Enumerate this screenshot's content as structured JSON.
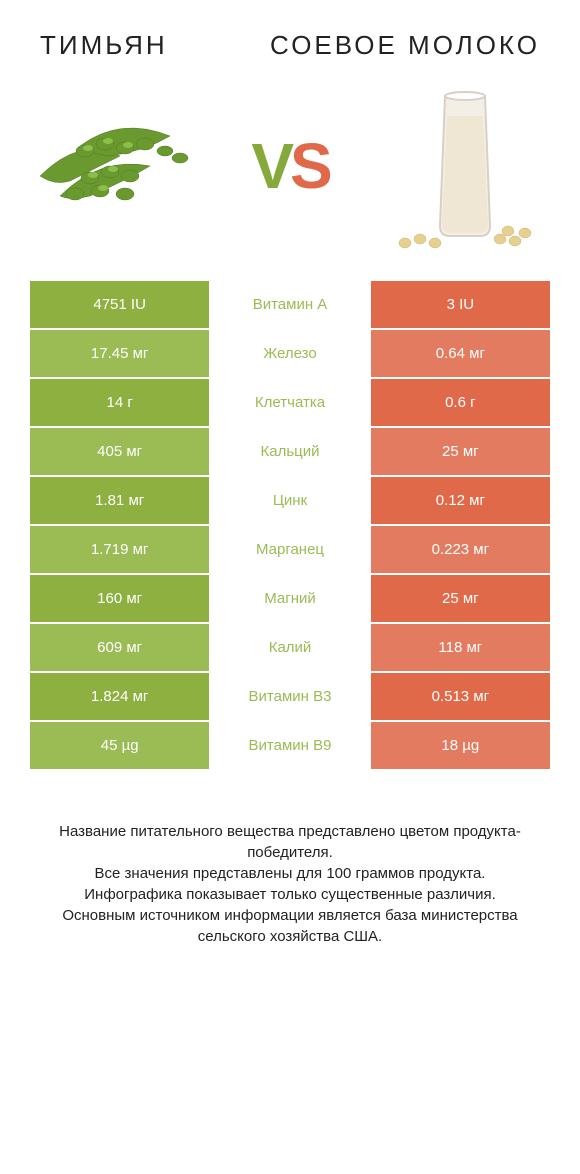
{
  "header": {
    "left_title": "ТИМЬЯН",
    "right_title": "СОЕВОЕ МОЛОКО",
    "vs_v": "V",
    "vs_s": "S"
  },
  "palette": {
    "left_odd": "#8eb040",
    "left_even": "#9bbb55",
    "right_odd": "#e0694a",
    "right_even": "#e27b60",
    "text": "#ffffff",
    "title_fontsize": 26,
    "title_letterspacing": 3,
    "value_fontsize": 15,
    "footer_fontsize": 15,
    "vs_fontsize": 64
  },
  "table": {
    "rows": [
      {
        "left": "4751 IU",
        "label": "Витамин A",
        "right": "3 IU",
        "winner": "left"
      },
      {
        "left": "17.45 мг",
        "label": "Железо",
        "right": "0.64 мг",
        "winner": "left"
      },
      {
        "left": "14 г",
        "label": "Клетчатка",
        "right": "0.6 г",
        "winner": "left"
      },
      {
        "left": "405 мг",
        "label": "Кальций",
        "right": "25 мг",
        "winner": "left"
      },
      {
        "left": "1.81 мг",
        "label": "Цинк",
        "right": "0.12 мг",
        "winner": "left"
      },
      {
        "left": "1.719 мг",
        "label": "Марганец",
        "right": "0.223 мг",
        "winner": "left"
      },
      {
        "left": "160 мг",
        "label": "Магний",
        "right": "25 мг",
        "winner": "left"
      },
      {
        "left": "609 мг",
        "label": "Калий",
        "right": "118 мг",
        "winner": "left"
      },
      {
        "left": "1.824 мг",
        "label": "Витамин B3",
        "right": "0.513 мг",
        "winner": "left"
      },
      {
        "left": "45 µg",
        "label": "Витамин B9",
        "right": "18 µg",
        "winner": "left"
      }
    ]
  },
  "footer": {
    "line1": "Название питательного вещества представлено цветом продукта-победителя.",
    "line2": "Все значения представлены для 100 граммов продукта.",
    "line3": "Инфографика показывает только существенные различия.",
    "line4": "Основным источником информации является база министерства сельского хозяйства США."
  },
  "images": {
    "left_alt": "thyme-illustration",
    "right_alt": "soy-milk-illustration"
  }
}
